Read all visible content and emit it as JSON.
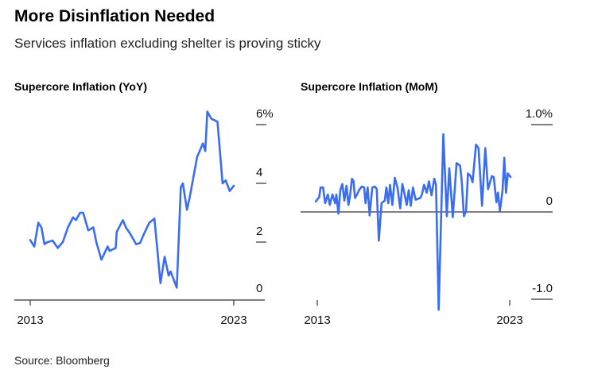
{
  "header": {
    "title": "More Disinflation Needed",
    "subtitle": "Services inflation excluding shelter is proving sticky"
  },
  "footer": {
    "source": "Source: Bloomberg"
  },
  "colors": {
    "line": "#3a6df0",
    "axis": "#333333"
  },
  "chart_data": [
    {
      "type": "line",
      "title": "Supercore Inflation (YoY)",
      "xlabel": "",
      "ylabel": "",
      "xlim": [
        2013,
        2023
      ],
      "ylim": [
        0,
        6
      ],
      "x_ticks": [
        2013,
        2023
      ],
      "x_tick_labels": [
        "2013",
        "2023"
      ],
      "y_ticks": [
        0,
        2,
        4,
        6
      ],
      "y_tick_labels": [
        "0",
        "2",
        "4",
        "6%"
      ],
      "grid": false,
      "series": [
        {
          "name": "Supercore Inflation (YoY)",
          "x": [
            2013.0,
            2013.2,
            2013.4,
            2013.55,
            2013.7,
            2013.85,
            2014.1,
            2014.35,
            2014.6,
            2014.85,
            2015.1,
            2015.25,
            2015.45,
            2015.6,
            2015.85,
            2016.1,
            2016.25,
            2016.5,
            2016.8,
            2016.9,
            2017.2,
            2017.25,
            2017.55,
            2017.7,
            2017.9,
            2018.2,
            2018.4,
            2018.6,
            2018.85,
            2019.1,
            2019.4,
            2019.6,
            2019.8,
            2019.9,
            2020.2,
            2020.4,
            2020.5,
            2020.7,
            2020.83,
            2021.2,
            2021.48,
            2021.6,
            2021.7,
            2021.9,
            2022.2,
            2022.45,
            2022.6,
            2022.8,
            2023.0
          ],
          "y": [
            2.07,
            1.85,
            2.66,
            2.5,
            1.93,
            2.0,
            2.05,
            1.8,
            2.0,
            2.5,
            2.84,
            2.75,
            3.0,
            3.0,
            2.4,
            2.5,
            1.99,
            1.4,
            1.85,
            1.7,
            1.8,
            2.35,
            2.75,
            2.5,
            2.3,
            1.93,
            1.97,
            2.3,
            2.66,
            2.8,
            0.6,
            1.5,
            0.86,
            1.0,
            0.45,
            3.87,
            4.0,
            3.1,
            3.5,
            4.9,
            5.36,
            5.1,
            6.44,
            6.2,
            6.1,
            4.0,
            4.1,
            3.74,
            3.92
          ]
        }
      ]
    },
    {
      "type": "line",
      "title": "Supercore Inflation (MoM)",
      "xlabel": "",
      "ylabel": "",
      "xlim": [
        2013,
        2023
      ],
      "ylim": [
        -1.0,
        1.0
      ],
      "x_ticks": [
        2013,
        2023
      ],
      "x_tick_labels": [
        "2013",
        "2023"
      ],
      "y_ticks": [
        -1.0,
        0,
        1.0
      ],
      "y_tick_labels": [
        "-1.0",
        "0",
        "1.0%"
      ],
      "grid": false,
      "series": [
        {
          "name": "Supercore Inflation (MoM)",
          "x": [
            2012.92,
            2013.1,
            2013.17,
            2013.3,
            2013.41,
            2013.55,
            2013.65,
            2013.79,
            2013.93,
            2013.99,
            2014.1,
            2014.2,
            2014.3,
            2014.41,
            2014.52,
            2014.62,
            2014.71,
            2014.8,
            2014.89,
            2014.96,
            2015.07,
            2015.17,
            2015.31,
            2015.44,
            2015.51,
            2015.62,
            2015.72,
            2015.86,
            2016.0,
            2016.09,
            2016.2,
            2016.34,
            2016.51,
            2016.59,
            2016.69,
            2016.78,
            2016.9,
            2017.03,
            2017.17,
            2017.31,
            2017.42,
            2017.52,
            2017.65,
            2017.75,
            2017.86,
            2017.97,
            2018.11,
            2018.35,
            2018.44,
            2018.55,
            2018.69,
            2018.8,
            2018.94,
            2019.08,
            2019.17,
            2019.31,
            2019.55,
            2019.73,
            2019.86,
            2020.04,
            2020.24,
            2020.42,
            2020.51,
            2020.62,
            2020.73,
            2020.83,
            2020.97,
            2021.07,
            2021.25,
            2021.38,
            2021.56,
            2021.73,
            2021.87,
            2022.07,
            2022.17,
            2022.31,
            2022.39,
            2022.49,
            2022.63,
            2022.72,
            2022.81,
            2022.9,
            2023.04
          ],
          "y": [
            0.12,
            0.17,
            0.28,
            0.28,
            0.1,
            0.2,
            0.08,
            0.2,
            0.1,
            0.2,
            -0.02,
            0.25,
            0.32,
            0.13,
            0.3,
            0.08,
            0.2,
            0.38,
            0.35,
            0.16,
            0.2,
            0.25,
            0.29,
            0.28,
            0.1,
            0.28,
            -0.04,
            0.28,
            0.29,
            0.26,
            -0.33,
            0.1,
            0.13,
            0.28,
            0.1,
            0.31,
            0.08,
            0.39,
            0.28,
            0.04,
            0.32,
            0.22,
            0.08,
            0.25,
            0.07,
            0.28,
            0.14,
            0.16,
            0.2,
            0.31,
            0.22,
            0.35,
            0.19,
            0.38,
            0.31,
            -1.12,
            0.89,
            -0.05,
            0.5,
            -0.06,
            0.56,
            0.53,
            0.35,
            -0.05,
            0.01,
            0.44,
            0.41,
            0.34,
            0.77,
            0.73,
            0.07,
            0.73,
            0.26,
            0.41,
            0.4,
            0.11,
            0.22,
            0.01,
            0.25,
            0.62,
            0.22,
            0.44,
            0.4
          ]
        }
      ]
    }
  ]
}
